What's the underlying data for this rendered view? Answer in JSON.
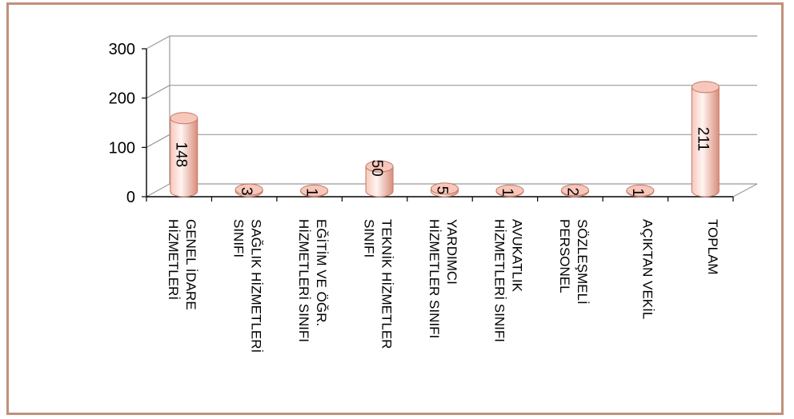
{
  "colors": {
    "bar_light": "#fff4f1",
    "bar_mid": "#f7c7bb",
    "bar_dark": "#d98d7b",
    "bar_stroke": "#c27866",
    "grid": "#9a9a9a",
    "axis": "#000000",
    "frame": "#c0907a"
  },
  "chart_data": {
    "type": "bar",
    "title": "",
    "xlabel": "",
    "ylabel": "",
    "ylim": [
      0,
      300
    ],
    "yticks": [
      0,
      100,
      200,
      300
    ],
    "grid": true,
    "legend": "none",
    "style": "3d-cylinder",
    "categories": [
      [
        "GENEL İDARE",
        "HİZMETLERİ"
      ],
      [
        "SAĞLIK HİZMETLERİ",
        "SINIFI"
      ],
      [
        "EĞİTİM VE ÖĞR.",
        "HİZMETLERİ SINIFI"
      ],
      [
        "TEKNİK HİZMETLER",
        "SINIFI"
      ],
      [
        "YARDIMCI",
        "HİZMETLER SINIFI"
      ],
      [
        "AVUKATLIK",
        "HİZMETLERİ SINIFI"
      ],
      [
        "SÖZLEŞMELİ",
        "PERSONEL"
      ],
      [
        "AÇIKTAN VEKİL"
      ],
      [
        "TOPLAM"
      ]
    ],
    "values": [
      148,
      3,
      1,
      50,
      5,
      1,
      2,
      1,
      211
    ],
    "data_labels": [
      "148",
      "3",
      "1",
      "50",
      "5",
      "1",
      "2",
      "1",
      "211"
    ]
  }
}
